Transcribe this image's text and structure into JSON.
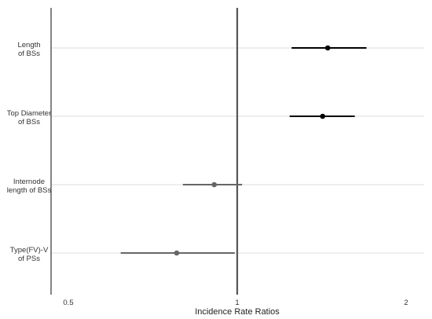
{
  "chart_data": {
    "type": "forest",
    "xlabel": "Incidence Rate Ratios",
    "x_scale": "log",
    "xlim": [
      0.45,
      2.25
    ],
    "xticks": [
      0.5,
      1,
      2
    ],
    "xtick_labels": [
      "0.5",
      "1",
      "2"
    ],
    "reference_line": 1,
    "grid": "horizontal",
    "rows": [
      {
        "label_lines": [
          "Length",
          "of BSs"
        ],
        "estimate": 1.45,
        "ci_low": 1.25,
        "ci_high": 1.7,
        "color": "#000000"
      },
      {
        "label_lines": [
          "Top Diameter",
          "of BSs"
        ],
        "estimate": 1.42,
        "ci_low": 1.24,
        "ci_high": 1.62,
        "color": "#000000"
      },
      {
        "label_lines": [
          "Internode",
          "length of BSs"
        ],
        "estimate": 0.91,
        "ci_low": 0.8,
        "ci_high": 1.02,
        "color": "#666666"
      },
      {
        "label_lines": [
          "Type(FV)-V",
          "of PSs"
        ],
        "estimate": 0.78,
        "ci_low": 0.62,
        "ci_high": 0.99,
        "color": "#666666"
      }
    ]
  }
}
